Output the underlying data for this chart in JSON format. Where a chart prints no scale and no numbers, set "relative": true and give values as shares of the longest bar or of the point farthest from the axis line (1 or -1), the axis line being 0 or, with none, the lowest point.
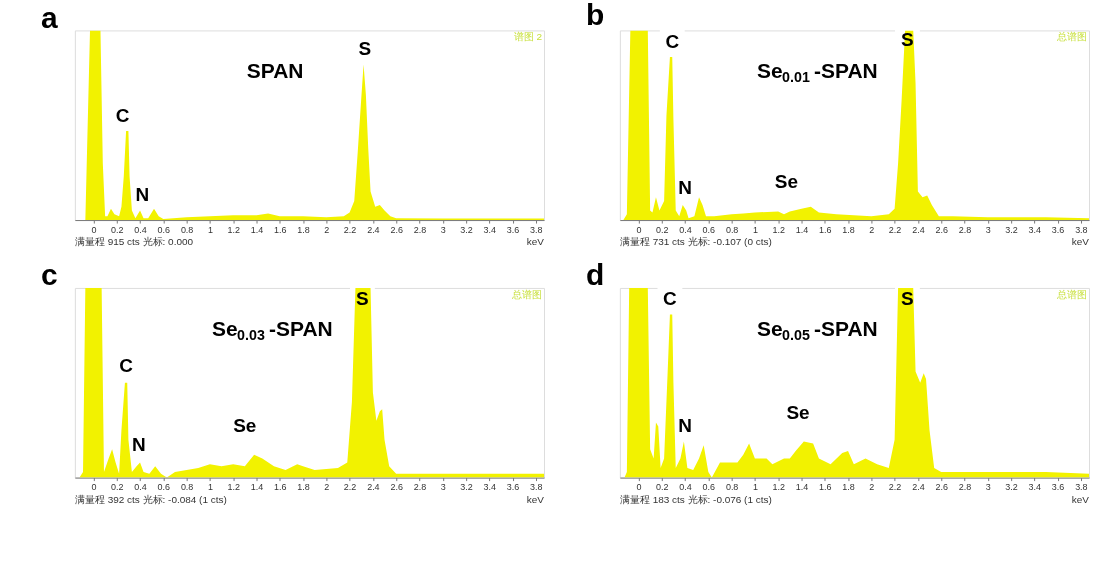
{
  "chart_data": [
    {
      "type": "area",
      "title": "a",
      "subtitle": "满量程 915 cts 光标: 0.000",
      "xlabel": "keV",
      "relative": true,
      "xlim": [
        -0.16,
        3.87
      ],
      "xticks": [
        0,
        0.2,
        0.4,
        0.6,
        0.8,
        1,
        1.2,
        1.4,
        1.6,
        1.8,
        2,
        2.2,
        2.4,
        2.6,
        2.8,
        3,
        3.2,
        3.4,
        3.6,
        3.8
      ],
      "x": [
        -0.16,
        -0.07,
        -0.06,
        -0.03,
        0.06,
        0.08,
        0.1,
        0.12,
        0.15,
        0.18,
        0.22,
        0.24,
        0.26,
        0.28,
        0.3,
        0.31,
        0.33,
        0.36,
        0.4,
        0.43,
        0.47,
        0.52,
        0.56,
        0.6,
        0.8,
        1.0,
        1.2,
        1.4,
        1.5,
        1.6,
        1.8,
        2.0,
        2.15,
        2.2,
        2.24,
        2.27,
        2.3,
        2.32,
        2.34,
        2.36,
        2.38,
        2.42,
        2.46,
        2.5,
        2.55,
        2.6,
        3.0,
        3.5,
        3.87
      ],
      "series": [
        {
          "color": "#f2f200",
          "values": [
            0,
            0,
            0.25,
            1,
            1,
            0.3,
            0.02,
            0.02,
            0.06,
            0.03,
            0.02,
            0.07,
            0.23,
            0.47,
            0.47,
            0.23,
            0.05,
            0.01,
            0.05,
            0.01,
            0.01,
            0.06,
            0.02,
            0.005,
            0.015,
            0.02,
            0.025,
            0.025,
            0.035,
            0.02,
            0.02,
            0.015,
            0.02,
            0.04,
            0.1,
            0.36,
            0.64,
            0.82,
            0.66,
            0.38,
            0.15,
            0.07,
            0.08,
            0.05,
            0.02,
            0.01,
            0.008,
            0.008,
            0.008
          ]
        }
      ],
      "annotations": [
        "SPAN",
        "谱图 2",
        {
          "text": "C",
          "x": 0.25,
          "y": 0.55
        },
        {
          "text": "N",
          "x": 0.42,
          "y": 0.13
        },
        {
          "text": "S",
          "x": 2.33,
          "y": 0.9
        }
      ]
    },
    {
      "type": "area",
      "title": "b",
      "subtitle": "满量程 731 cts 光标: -0.107  (0 cts)",
      "xlabel": "keV",
      "relative": true,
      "xlim": [
        -0.16,
        3.87
      ],
      "xticks": [
        0,
        0.2,
        0.4,
        0.6,
        0.8,
        1,
        1.2,
        1.4,
        1.6,
        1.8,
        2,
        2.2,
        2.4,
        2.6,
        2.8,
        3,
        3.2,
        3.4,
        3.6,
        3.8
      ],
      "x": [
        -0.16,
        -0.13,
        -0.1,
        -0.07,
        0.08,
        0.1,
        0.12,
        0.15,
        0.18,
        0.22,
        0.24,
        0.27,
        0.29,
        0.3,
        0.32,
        0.35,
        0.38,
        0.41,
        0.43,
        0.48,
        0.52,
        0.55,
        0.58,
        0.65,
        0.8,
        0.9,
        1.0,
        1.2,
        1.25,
        1.3,
        1.4,
        1.48,
        1.55,
        1.7,
        2.0,
        2.15,
        2.2,
        2.23,
        2.26,
        2.29,
        2.36,
        2.38,
        2.4,
        2.44,
        2.48,
        2.52,
        2.58,
        2.7,
        3.0,
        3.5,
        3.87
      ],
      "series": [
        {
          "color": "#f2f200",
          "values": [
            0,
            0,
            0.03,
            1,
            1,
            0.05,
            0.04,
            0.12,
            0.05,
            0.1,
            0.55,
            0.86,
            0.86,
            0.53,
            0.05,
            0.02,
            0.08,
            0.05,
            0.01,
            0.02,
            0.12,
            0.08,
            0.02,
            0.02,
            0.03,
            0.035,
            0.04,
            0.045,
            0.03,
            0.045,
            0.06,
            0.07,
            0.04,
            0.03,
            0.02,
            0.03,
            0.06,
            0.3,
            0.63,
            1,
            1,
            0.72,
            0.15,
            0.12,
            0.13,
            0.08,
            0.02,
            0.02,
            0.015,
            0.015,
            0.01
          ]
        }
      ],
      "annotations": [
        "Se$_{0.01}$-SPAN",
        "总谱图",
        {
          "text": "C",
          "x": 0.29,
          "y": 0.94
        },
        {
          "text": "N",
          "x": 0.4,
          "y": 0.17
        },
        {
          "text": "Se",
          "x": 1.27,
          "y": 0.2
        },
        {
          "text": "S",
          "x": 2.31,
          "y": 0.95
        }
      ]
    },
    {
      "type": "area",
      "title": "c",
      "subtitle": "满量程 392 cts 光标: -0.084  (1 cts)",
      "xlabel": "keV",
      "relative": true,
      "xlim": [
        -0.16,
        3.87
      ],
      "xticks": [
        0,
        0.2,
        0.4,
        0.6,
        0.8,
        1,
        1.2,
        1.4,
        1.6,
        1.8,
        2,
        2.2,
        2.4,
        2.6,
        2.8,
        3,
        3.2,
        3.4,
        3.6,
        3.8
      ],
      "x": [
        -0.16,
        -0.12,
        -0.09,
        -0.07,
        0.07,
        0.09,
        0.13,
        0.16,
        0.19,
        0.22,
        0.24,
        0.27,
        0.29,
        0.3,
        0.33,
        0.37,
        0.4,
        0.43,
        0.48,
        0.53,
        0.58,
        0.63,
        0.7,
        0.9,
        1.0,
        1.1,
        1.2,
        1.3,
        1.38,
        1.45,
        1.55,
        1.65,
        1.75,
        1.8,
        1.9,
        2.1,
        2.18,
        2.22,
        2.25,
        2.38,
        2.4,
        2.43,
        2.46,
        2.48,
        2.5,
        2.54,
        2.6,
        3.0,
        3.5,
        3.87
      ],
      "series": [
        {
          "color": "#f2f200",
          "values": [
            0,
            0,
            0.03,
            1,
            1,
            0.03,
            0.1,
            0.15,
            0.08,
            0.02,
            0.25,
            0.5,
            0.5,
            0.2,
            0.03,
            0.06,
            0.08,
            0.03,
            0.02,
            0.06,
            0.02,
            0,
            0.03,
            0.05,
            0.07,
            0.06,
            0.07,
            0.06,
            0.12,
            0.1,
            0.06,
            0.04,
            0.07,
            0.06,
            0.04,
            0.05,
            0.08,
            0.4,
            1,
            1,
            0.45,
            0.3,
            0.35,
            0.36,
            0.2,
            0.06,
            0.02,
            0.02,
            0.02,
            0.02
          ]
        }
      ],
      "annotations": [
        "Se$_{0.03}$-SPAN",
        "总谱图",
        {
          "text": "C",
          "x": 0.28,
          "y": 0.59
        },
        {
          "text": "N",
          "x": 0.39,
          "y": 0.17
        },
        {
          "text": "Se",
          "x": 1.3,
          "y": 0.27
        },
        {
          "text": "S",
          "x": 2.31,
          "y": 0.94
        }
      ]
    },
    {
      "type": "area",
      "title": "d",
      "subtitle": "满量程 183 cts 光标: -0.076  (1 cts)",
      "xlabel": "keV",
      "relative": true,
      "xlim": [
        -0.16,
        3.87
      ],
      "xticks": [
        0,
        0.2,
        0.4,
        0.6,
        0.8,
        1,
        1.2,
        1.4,
        1.6,
        1.8,
        2,
        2.2,
        2.4,
        2.6,
        2.8,
        3,
        3.2,
        3.4,
        3.6,
        3.8
      ],
      "x": [
        -0.16,
        -0.12,
        -0.1,
        -0.08,
        0.08,
        0.1,
        0.13,
        0.15,
        0.17,
        0.19,
        0.22,
        0.25,
        0.27,
        0.29,
        0.3,
        0.32,
        0.36,
        0.39,
        0.42,
        0.47,
        0.52,
        0.56,
        0.6,
        0.63,
        0.7,
        0.85,
        0.9,
        0.95,
        1.0,
        1.1,
        1.15,
        1.25,
        1.3,
        1.35,
        1.42,
        1.5,
        1.55,
        1.65,
        1.75,
        1.8,
        1.85,
        1.95,
        2.05,
        2.15,
        2.2,
        2.23,
        2.36,
        2.38,
        2.42,
        2.45,
        2.47,
        2.5,
        2.54,
        2.6,
        3.0,
        3.5,
        3.87
      ],
      "series": [
        {
          "color": "#f2f200",
          "values": [
            0,
            0,
            0.03,
            1,
            1,
            0.15,
            0.1,
            0.29,
            0.27,
            0.05,
            0.1,
            0.55,
            0.86,
            0.86,
            0.5,
            0.05,
            0.1,
            0.19,
            0.05,
            0.04,
            0.1,
            0.17,
            0.03,
            0,
            0.08,
            0.08,
            0.12,
            0.18,
            0.1,
            0.1,
            0.07,
            0.1,
            0.1,
            0.14,
            0.19,
            0.18,
            0.1,
            0.07,
            0.13,
            0.14,
            0.07,
            0.1,
            0.07,
            0.05,
            0.2,
            1,
            1,
            0.56,
            0.5,
            0.55,
            0.52,
            0.25,
            0.05,
            0.03,
            0.03,
            0.03,
            0.02
          ]
        }
      ],
      "annotations": [
        "Se$_{0.05}$-SPAN",
        "总谱图",
        {
          "text": "C",
          "x": 0.27,
          "y": 0.94
        },
        {
          "text": "N",
          "x": 0.4,
          "y": 0.27
        },
        {
          "text": "Se",
          "x": 1.37,
          "y": 0.34
        },
        {
          "text": "S",
          "x": 2.31,
          "y": 0.94
        }
      ]
    }
  ]
}
